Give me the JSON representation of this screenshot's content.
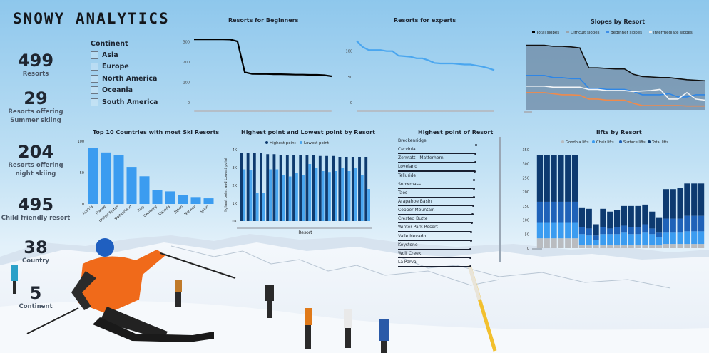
{
  "title": "SNOWY ANALYTICS",
  "kpis": [
    {
      "value": "499",
      "label": "Resorts"
    },
    {
      "value": "29",
      "label": "Resorts offering Summer skiing"
    },
    {
      "value": "204",
      "label": "Resorts offering night skiing"
    },
    {
      "value": "495",
      "label": "Child friendly resort"
    },
    {
      "value": "38",
      "label": "Country"
    },
    {
      "value": "5",
      "label": "Continent"
    }
  ],
  "continent_filter": {
    "heading": "Continent",
    "options": [
      "Asia",
      "Europe",
      "North America",
      "Oceania",
      "South America"
    ]
  },
  "colors": {
    "dark_blue": "#0e3a6e",
    "mid_blue": "#1f74d1",
    "light_blue": "#4aa6ef",
    "bar_blue": "#3b9cf0",
    "grey": "#b9bcc0"
  },
  "chart_data": [
    {
      "id": "beginners",
      "type": "line",
      "title": "Resorts for Beginners",
      "yticks": [
        "300",
        "200",
        "100",
        "0"
      ],
      "ylim": [
        0,
        330
      ],
      "values": [
        312,
        312,
        312,
        312,
        312,
        311,
        302,
        150,
        142,
        141,
        141,
        140,
        140,
        139,
        138,
        138,
        137,
        137,
        135,
        130
      ]
    },
    {
      "id": "experts",
      "type": "line",
      "title": "Resorts for experts",
      "yticks": [
        "100",
        "50",
        "0"
      ],
      "ylim": [
        0,
        130
      ],
      "values": [
        120,
        108,
        102,
        102,
        102,
        100,
        100,
        91,
        90,
        89,
        86,
        86,
        82,
        77,
        76,
        76,
        76,
        75,
        74,
        74,
        72,
        70,
        67,
        63
      ]
    },
    {
      "id": "slopes",
      "type": "area",
      "title": "Slopes by Resort",
      "legend": [
        "Total slopes",
        "Difficult slopes",
        "Beginner slopes",
        "Intermediate slopes"
      ],
      "series": [
        {
          "name": "Total slopes",
          "values": [
            600,
            600,
            600,
            590,
            590,
            585,
            575,
            390,
            390,
            385,
            380,
            380,
            330,
            310,
            305,
            300,
            300,
            290,
            280,
            275,
            270
          ]
        },
        {
          "name": "Difficult slopes",
          "values": [
            160,
            160,
            160,
            150,
            140,
            140,
            135,
            100,
            100,
            90,
            90,
            90,
            60,
            40,
            40,
            40,
            40,
            40,
            35,
            35,
            35
          ]
        },
        {
          "name": "Beginner slopes",
          "values": [
            320,
            320,
            320,
            300,
            300,
            290,
            290,
            200,
            200,
            190,
            190,
            190,
            170,
            140,
            140,
            140,
            150,
            120,
            120,
            140,
            140
          ]
        },
        {
          "name": "Intermediate slopes",
          "values": [
            220,
            220,
            220,
            210,
            210,
            210,
            210,
            190,
            190,
            180,
            180,
            180,
            170,
            175,
            180,
            190,
            100,
            100,
            160,
            100,
            90
          ]
        }
      ],
      "ylim": [
        0,
        650
      ]
    },
    {
      "id": "top10",
      "type": "bar",
      "title": "Top 10 Countries with most Ski Resorts",
      "categories": [
        "Austria",
        "France",
        "United States",
        "Switzerland",
        "Italy",
        "Germany",
        "Canada",
        "Japan",
        "Norway",
        "Spain"
      ],
      "yticks": [
        "100",
        "50",
        "0"
      ],
      "values": [
        89,
        82,
        78,
        59,
        44,
        22,
        20,
        14,
        11,
        9
      ],
      "ylim": [
        0,
        100
      ]
    },
    {
      "id": "highlow",
      "type": "bar",
      "title": "Highest point and Lowest point by Resort",
      "legend": [
        "Highest point",
        "Lowest point"
      ],
      "xlabel": "Resort",
      "ylabel": "Highest point and Lowest point",
      "yticks": [
        "4K",
        "3K",
        "2K",
        "1K",
        "0K"
      ],
      "ylim": [
        0,
        4000
      ],
      "series": [
        {
          "name": "Highest point",
          "values": [
            3800,
            3800,
            3800,
            3800,
            3750,
            3750,
            3700,
            3700,
            3700,
            3700,
            3700,
            3700,
            3650,
            3650,
            3650,
            3600,
            3600,
            3600,
            3600,
            3600
          ]
        },
        {
          "name": "Lowest point",
          "values": [
            2900,
            2850,
            1600,
            1600,
            2900,
            2900,
            2600,
            2500,
            2700,
            2600,
            3200,
            3000,
            2800,
            2750,
            2800,
            3000,
            2800,
            3000,
            2600,
            1800
          ]
        }
      ]
    },
    {
      "id": "highest_list",
      "type": "bar",
      "title": "Highest point of Resort",
      "categories": [
        "Breckenridge",
        "Cervinia",
        "Zermatt - Matterhorn",
        "Loveland",
        "Telluride",
        "Snowmass",
        "Taos",
        "Arapahoe Basin",
        "Copper Mountain",
        "Crested Butte",
        "Winter Park Resort",
        "Valle Nevado",
        "Keystone",
        "Wolf Creek",
        "La Parva"
      ],
      "values": [
        3914,
        3899,
        3899,
        3870,
        3831,
        3813,
        3804,
        3800,
        3750,
        3707,
        3676,
        3670,
        3651,
        3635,
        3630
      ],
      "xlim": [
        0,
        4000
      ]
    },
    {
      "id": "lifts",
      "type": "bar",
      "title": "lifts by Resort",
      "legend": [
        "Gondola lifts",
        "Chair lifts",
        "Surface lifts",
        "Total lifts"
      ],
      "yticks": [
        "350",
        "300",
        "250",
        "200",
        "150",
        "100",
        "50",
        "0"
      ],
      "ylim": [
        0,
        350
      ],
      "series": [
        {
          "name": "Gondola lifts",
          "values": [
            35,
            35,
            35,
            35,
            35,
            35,
            10,
            10,
            10,
            10,
            10,
            10,
            10,
            10,
            10,
            10,
            10,
            10,
            15,
            15,
            15,
            15,
            15,
            15
          ]
        },
        {
          "name": "Chair lifts",
          "values": [
            55,
            55,
            55,
            55,
            55,
            55,
            40,
            35,
            20,
            40,
            40,
            40,
            45,
            40,
            40,
            45,
            40,
            30,
            40,
            40,
            40,
            45,
            45,
            45
          ]
        },
        {
          "name": "Surface lifts",
          "values": [
            75,
            75,
            75,
            75,
            75,
            75,
            25,
            25,
            15,
            25,
            20,
            25,
            25,
            25,
            25,
            30,
            20,
            15,
            50,
            50,
            50,
            55,
            55,
            55
          ]
        },
        {
          "name": "Total lifts",
          "values": [
            165,
            165,
            165,
            165,
            165,
            165,
            70,
            70,
            40,
            65,
            60,
            60,
            70,
            75,
            75,
            70,
            60,
            55,
            105,
            105,
            110,
            115,
            115,
            115
          ]
        }
      ]
    }
  ]
}
